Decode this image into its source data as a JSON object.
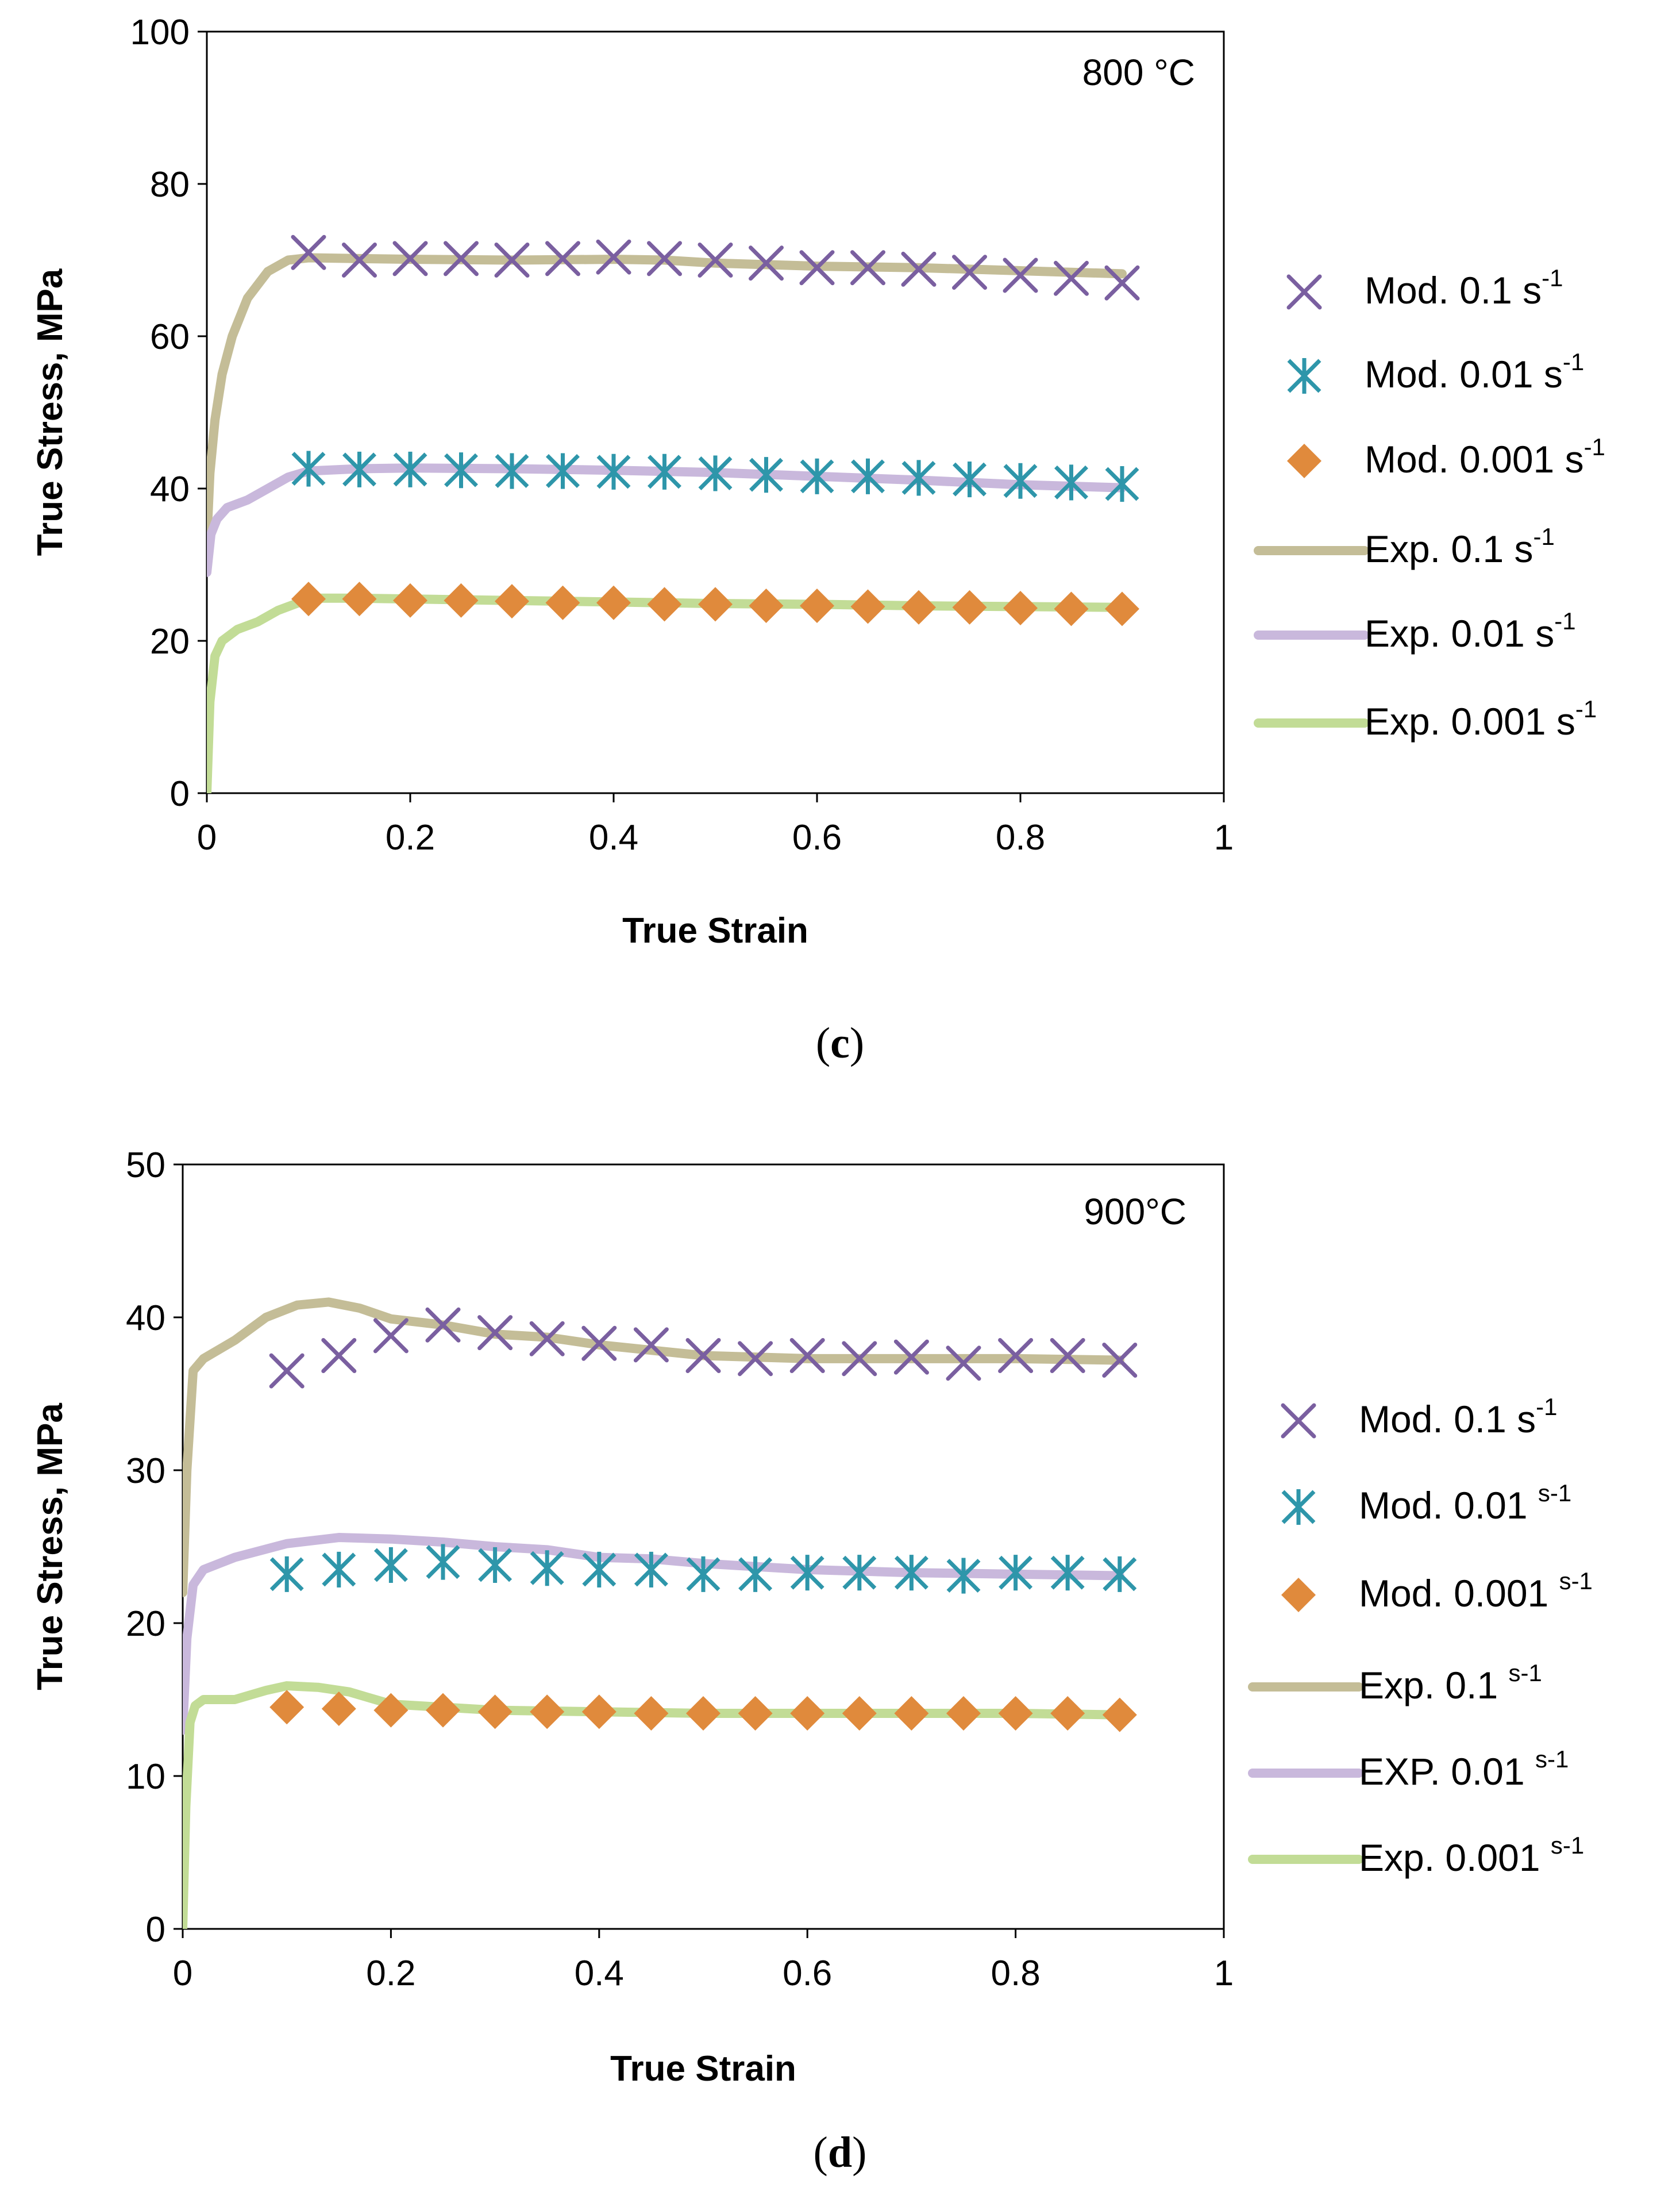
{
  "chart_data": [
    {
      "type": "line",
      "panel": "c",
      "panel_label": {
        "open": "(",
        "letter": "c",
        "close": ")"
      },
      "annotation": "800 °C",
      "xlabel": "True Strain",
      "ylabel": "True Stress, MPa",
      "xlim": [
        0,
        1
      ],
      "ylim": [
        0,
        100
      ],
      "xticks": [
        "0",
        "0.2",
        "0.4",
        "0.6",
        "0.8",
        "1"
      ],
      "yticks": [
        "0",
        "20",
        "40",
        "60",
        "80",
        "100"
      ],
      "xtick_values": [
        0,
        0.2,
        0.4,
        0.6,
        0.8,
        1
      ],
      "ytick_values": [
        0,
        20,
        40,
        60,
        80,
        100
      ],
      "series": [
        {
          "name": "Mod. 0.1 s-1",
          "label": "Mod. 0.1 s",
          "exp": "-1",
          "kind": "marker",
          "marker": "x",
          "color": "#7a5fa0",
          "x": [
            0.1,
            0.15,
            0.2,
            0.25,
            0.3,
            0.35,
            0.4,
            0.45,
            0.5,
            0.55,
            0.6,
            0.65,
            0.7,
            0.75,
            0.8,
            0.85,
            0.9
          ],
          "y": [
            71,
            70,
            70.2,
            70.2,
            70,
            70.2,
            70.4,
            70.2,
            70,
            69.6,
            69,
            69,
            68.8,
            68.4,
            68,
            67.6,
            67
          ]
        },
        {
          "name": "Mod. 0.01 s-1",
          "label": "Mod. 0.01 s",
          "exp": "-1",
          "kind": "marker",
          "marker": "asterisk",
          "color": "#2e96aa",
          "x": [
            0.1,
            0.15,
            0.2,
            0.25,
            0.3,
            0.35,
            0.4,
            0.45,
            0.5,
            0.55,
            0.6,
            0.65,
            0.7,
            0.75,
            0.8,
            0.85,
            0.9
          ],
          "y": [
            42.6,
            42.5,
            42.5,
            42.4,
            42.3,
            42.3,
            42.2,
            42.2,
            42,
            41.8,
            41.6,
            41.6,
            41.4,
            41.2,
            41,
            40.8,
            40.6
          ]
        },
        {
          "name": "Mod. 0.001 s-1",
          "label": "Mod. 0.001 s",
          "exp": "-1",
          "kind": "marker",
          "marker": "diamond",
          "color": "#e08a3c",
          "x": [
            0.1,
            0.15,
            0.2,
            0.25,
            0.3,
            0.35,
            0.4,
            0.45,
            0.5,
            0.55,
            0.6,
            0.65,
            0.7,
            0.75,
            0.8,
            0.85,
            0.9
          ],
          "y": [
            25.5,
            25.5,
            25.3,
            25.3,
            25.2,
            25,
            25,
            24.8,
            24.8,
            24.6,
            24.6,
            24.5,
            24.4,
            24.4,
            24.3,
            24.2,
            24.2
          ]
        },
        {
          "name": "Exp. 0.1 s-1",
          "label": "Exp. 0.1 s",
          "exp": "-1",
          "kind": "line",
          "color": "#c4bd97",
          "x": [
            0,
            0.003,
            0.008,
            0.015,
            0.025,
            0.04,
            0.06,
            0.08,
            0.1,
            0.15,
            0.2,
            0.3,
            0.4,
            0.45,
            0.5,
            0.6,
            0.7,
            0.8,
            0.9
          ],
          "y": [
            33,
            42,
            49,
            55,
            60,
            65,
            68.5,
            70,
            70.3,
            70.2,
            70.1,
            70,
            70.1,
            70,
            69.6,
            69.2,
            69,
            68.6,
            68.2
          ]
        },
        {
          "name": "Exp. 0.01 s-1",
          "label": "Exp. 0.01 s",
          "exp": "-1",
          "kind": "line",
          "color": "#c9b8dc",
          "x": [
            0,
            0.004,
            0.01,
            0.02,
            0.04,
            0.06,
            0.08,
            0.1,
            0.15,
            0.2,
            0.3,
            0.4,
            0.5,
            0.6,
            0.7,
            0.8,
            0.9
          ],
          "y": [
            29,
            34,
            36,
            37.5,
            38.5,
            40,
            41.5,
            42.3,
            42.6,
            42.7,
            42.6,
            42.4,
            42.1,
            41.6,
            41.1,
            40.5,
            40.1
          ]
        },
        {
          "name": "Exp. 0.001 s-1",
          "label": "Exp. 0.001 s",
          "exp": "-1",
          "kind": "line",
          "color": "#c2dc96",
          "x": [
            0,
            0.003,
            0.008,
            0.015,
            0.03,
            0.05,
            0.07,
            0.09,
            0.11,
            0.15,
            0.2,
            0.3,
            0.4,
            0.5,
            0.6,
            0.7,
            0.8,
            0.9
          ],
          "y": [
            0,
            12,
            18,
            20,
            21.5,
            22.5,
            24,
            25,
            25.6,
            25.6,
            25.5,
            25.3,
            25.1,
            24.9,
            24.8,
            24.6,
            24.5,
            24.4
          ]
        }
      ]
    },
    {
      "type": "line",
      "panel": "d",
      "panel_label": {
        "open": "(",
        "letter": "d",
        "close": ")"
      },
      "annotation": "900°C",
      "xlabel": "True Strain",
      "ylabel": "True Stress, MPa",
      "xlim": [
        0,
        1
      ],
      "ylim": [
        0,
        50
      ],
      "xticks": [
        "0",
        "0.2",
        "0.4",
        "0.6",
        "0.8",
        "1"
      ],
      "yticks": [
        "0",
        "10",
        "20",
        "30",
        "40",
        "50"
      ],
      "xtick_values": [
        0,
        0.2,
        0.4,
        0.6,
        0.8,
        1
      ],
      "ytick_values": [
        0,
        10,
        20,
        30,
        40,
        50
      ],
      "series": [
        {
          "name": "Mod. 0.1 s-1",
          "label": "Mod. 0.1 s",
          "exp": "-1",
          "kind": "marker",
          "marker": "x",
          "color": "#7a5fa0",
          "x": [
            0.1,
            0.15,
            0.2,
            0.25,
            0.3,
            0.35,
            0.4,
            0.45,
            0.5,
            0.55,
            0.6,
            0.65,
            0.7,
            0.75,
            0.8,
            0.85,
            0.9
          ],
          "y": [
            36.5,
            37.5,
            38.8,
            39.5,
            39,
            38.6,
            38.3,
            38.2,
            37.5,
            37.3,
            37.5,
            37.3,
            37.4,
            37,
            37.5,
            37.5,
            37.2
          ]
        },
        {
          "name": "Mod. 0.01 s-1",
          "label": "Mod. 0.01 ",
          "exp": "s-1",
          "kind": "marker",
          "marker": "asterisk",
          "color": "#2e96aa",
          "x": [
            0.1,
            0.15,
            0.2,
            0.25,
            0.3,
            0.35,
            0.4,
            0.45,
            0.5,
            0.55,
            0.6,
            0.65,
            0.7,
            0.75,
            0.8,
            0.85,
            0.9
          ],
          "y": [
            23.2,
            23.5,
            23.8,
            24,
            23.8,
            23.6,
            23.5,
            23.5,
            23.2,
            23.2,
            23.3,
            23.3,
            23.3,
            23.1,
            23.3,
            23.3,
            23.2
          ]
        },
        {
          "name": "Mod. 0.001 s-1",
          "label": "Mod. 0.001 ",
          "exp": "s-1",
          "kind": "marker",
          "marker": "diamond",
          "color": "#e08a3c",
          "x": [
            0.1,
            0.15,
            0.2,
            0.25,
            0.3,
            0.35,
            0.4,
            0.45,
            0.5,
            0.55,
            0.6,
            0.65,
            0.7,
            0.75,
            0.8,
            0.85,
            0.9
          ],
          "y": [
            14.5,
            14.4,
            14.3,
            14.3,
            14.2,
            14.2,
            14.2,
            14.1,
            14.1,
            14.1,
            14.1,
            14.1,
            14.1,
            14.1,
            14.1,
            14.1,
            14
          ]
        },
        {
          "name": "Exp. 0.1 s-1",
          "label": "Exp. 0.1 ",
          "exp": "s-1",
          "kind": "line",
          "color": "#c4bd97",
          "x": [
            0,
            0.004,
            0.01,
            0.02,
            0.05,
            0.08,
            0.11,
            0.14,
            0.17,
            0.2,
            0.25,
            0.3,
            0.35,
            0.4,
            0.5,
            0.6,
            0.7,
            0.8,
            0.9
          ],
          "y": [
            22,
            30,
            36.5,
            37.3,
            38.5,
            40,
            40.8,
            41,
            40.6,
            39.9,
            39.5,
            38.9,
            38.7,
            38.2,
            37.5,
            37.3,
            37.3,
            37.3,
            37.2
          ]
        },
        {
          "name": "EXP. 0.01 s-1",
          "label": "EXP. 0.01 ",
          "exp": "s-1",
          "kind": "line",
          "color": "#c9b8dc",
          "x": [
            0,
            0.004,
            0.01,
            0.02,
            0.05,
            0.1,
            0.15,
            0.2,
            0.25,
            0.3,
            0.35,
            0.4,
            0.45,
            0.5,
            0.6,
            0.7,
            0.8,
            0.9
          ],
          "y": [
            13,
            19,
            22.5,
            23.5,
            24.3,
            25.2,
            25.6,
            25.5,
            25.3,
            25,
            24.8,
            24.3,
            24.2,
            23.9,
            23.5,
            23.3,
            23.2,
            23.1
          ]
        },
        {
          "name": "Exp. 0.001 s-1",
          "label": "Exp. 0.001 ",
          "exp": "s-1",
          "kind": "line",
          "color": "#c2dc96",
          "x": [
            0,
            0.003,
            0.007,
            0.012,
            0.02,
            0.05,
            0.08,
            0.1,
            0.13,
            0.16,
            0.2,
            0.3,
            0.4,
            0.5,
            0.6,
            0.7,
            0.8,
            0.9
          ],
          "y": [
            0,
            8,
            13.5,
            14.6,
            15,
            15,
            15.6,
            15.9,
            15.8,
            15.5,
            14.7,
            14.3,
            14.2,
            14.1,
            14.1,
            14.1,
            14.1,
            14
          ]
        }
      ]
    }
  ]
}
